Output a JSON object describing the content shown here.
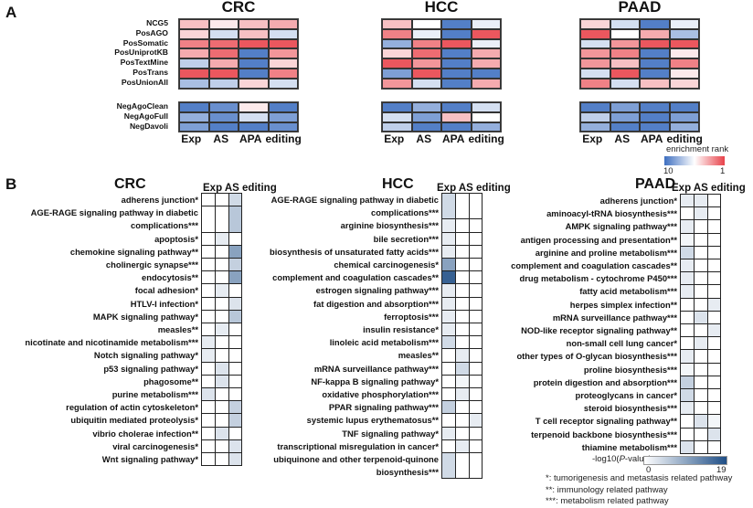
{
  "panel_a": {
    "letter": "A",
    "row_labels": [
      "NCG5",
      "PosAGO",
      "PosSomatic",
      "PosUniprotKB",
      "PosTextMine",
      "PosTrans",
      "PosUnionAll"
    ],
    "neg_row_labels": [
      "NegAgoClean",
      "NegAgoFull",
      "NegDavoli"
    ],
    "columns": [
      "Exp",
      "AS",
      "APA",
      "editing"
    ],
    "legend": {
      "title": "enrichment rank",
      "min_label": "10",
      "max_label": "1"
    }
  },
  "panel_b": {
    "letter": "B",
    "columns_label": "Exp AS editing",
    "legend": {
      "title_prefix": "-log10(",
      "title_italic": "P",
      "title_suffix": "-value)",
      "min_label": "0",
      "max_label": "19"
    },
    "footnotes": [
      "*: tumorigenesis and metastasis related pathway",
      "**: immunology related pathway",
      "***: metabolism related pathway"
    ]
  },
  "chart_data": [
    {
      "type": "heatmap",
      "title": "CRC",
      "panel": "A",
      "x": [
        "Exp",
        "AS",
        "APA",
        "editing"
      ],
      "y": [
        "NCG5",
        "PosAGO",
        "PosSomatic",
        "PosUniprotKB",
        "PosTextMine",
        "PosTrans",
        "PosUnionAll",
        "NegAgoClean",
        "NegAgoFull",
        "NegDavoli"
      ],
      "value_label": "enrichment rank",
      "range": [
        10,
        1
      ],
      "values": [
        [
          4,
          5,
          4,
          3.5
        ],
        [
          4.5,
          6.5,
          4,
          6.5
        ],
        [
          2.5,
          2,
          1.5,
          1.5
        ],
        [
          3.5,
          2,
          9.5,
          3
        ],
        [
          7,
          3.5,
          9.5,
          4.5
        ],
        [
          1.5,
          1.5,
          9.5,
          2.5
        ],
        [
          7.5,
          7,
          4.5,
          6.5
        ],
        [
          9.5,
          9,
          5,
          9.5
        ],
        [
          8,
          9,
          6.5,
          8.5
        ],
        [
          8.5,
          9.5,
          9.5,
          9
        ]
      ]
    },
    {
      "type": "heatmap",
      "title": "HCC",
      "panel": "A",
      "x": [
        "Exp",
        "AS",
        "APA",
        "editing"
      ],
      "y": [
        "NCG5",
        "PosAGO",
        "PosSomatic",
        "PosUniprotKB",
        "PosTextMine",
        "PosTrans",
        "PosUnionAll",
        "NegAgoClean",
        "NegAgoFull",
        "NegDavoli"
      ],
      "value_label": "enrichment rank",
      "range": [
        10,
        1
      ],
      "values": [
        [
          4,
          5.5,
          9.5,
          6
        ],
        [
          2.5,
          6,
          9.5,
          1.5
        ],
        [
          8,
          2.5,
          1.5,
          6
        ],
        [
          4.5,
          2,
          9.5,
          3.5
        ],
        [
          1.5,
          3,
          9.5,
          3.5
        ],
        [
          8.5,
          1.5,
          9.5,
          9.5
        ],
        [
          3,
          6.5,
          9.5,
          3.5
        ],
        [
          9.5,
          8,
          9.5,
          6.5
        ],
        [
          6.5,
          8.5,
          4,
          5.5
        ],
        [
          7,
          9.5,
          9.5,
          8
        ]
      ]
    },
    {
      "type": "heatmap",
      "title": "PAAD",
      "panel": "A",
      "x": [
        "Exp",
        "AS",
        "APA",
        "editing"
      ],
      "y": [
        "NCG5",
        "PosAGO",
        "PosSomatic",
        "PosUniprotKB",
        "PosTextMine",
        "PosTrans",
        "PosUnionAll",
        "NegAgoClean",
        "NegAgoFull",
        "NegDavoli"
      ],
      "value_label": "enrichment rank",
      "range": [
        10,
        1
      ],
      "values": [
        [
          4.5,
          6.5,
          9.5,
          6
        ],
        [
          1.5,
          5.5,
          3.5,
          7.5
        ],
        [
          6.5,
          3,
          1.5,
          1.5
        ],
        [
          3,
          2.5,
          9.5,
          5
        ],
        [
          3,
          4,
          9.5,
          2.5
        ],
        [
          6.5,
          1.5,
          9.5,
          5
        ],
        [
          2.5,
          6.5,
          4,
          4.5
        ],
        [
          9.5,
          8.5,
          9.5,
          9.5
        ],
        [
          7,
          8.5,
          9.5,
          8.5
        ],
        [
          8,
          9.5,
          9.5,
          8
        ]
      ]
    },
    {
      "type": "heatmap",
      "title": "CRC",
      "panel": "B",
      "x": [
        "Exp",
        "AS",
        "editing"
      ],
      "value_label": "-log10(P-value)",
      "range": [
        0,
        19
      ],
      "y": [
        {
          "label": "adherens junction*",
          "values": [
            0,
            0,
            4
          ]
        },
        {
          "label": "AGE-RAGE signaling pathway in diabetic complications***",
          "lines": [
            "AGE-RAGE signaling pathway in diabetic",
            "complications***"
          ],
          "values": [
            0,
            0,
            6
          ]
        },
        {
          "label": "apoptosis*",
          "values": [
            0,
            2,
            0
          ]
        },
        {
          "label": "chemokine signaling pathway**",
          "values": [
            0,
            0,
            10
          ]
        },
        {
          "label": "cholinergic synapse***",
          "values": [
            0,
            0,
            5
          ]
        },
        {
          "label": "endocytosis**",
          "values": [
            0,
            0,
            10
          ]
        },
        {
          "label": "focal adhesion*",
          "values": [
            0,
            2,
            0
          ]
        },
        {
          "label": "HTLV-I infection*",
          "values": [
            0,
            0,
            3
          ]
        },
        {
          "label": "MAPK signaling pathway*",
          "values": [
            0,
            0,
            6
          ]
        },
        {
          "label": "measles**",
          "values": [
            0,
            2,
            0
          ]
        },
        {
          "label": "nicotinate and nicotinamide metabolism***",
          "values": [
            2,
            0,
            0
          ]
        },
        {
          "label": "Notch signaling pathway*",
          "values": [
            2,
            0,
            0
          ]
        },
        {
          "label": "p53 signaling pathway*",
          "values": [
            0,
            3,
            0
          ]
        },
        {
          "label": "phagosome**",
          "values": [
            0,
            3,
            0
          ]
        },
        {
          "label": "purine metabolism***",
          "values": [
            3,
            0,
            0
          ]
        },
        {
          "label": "regulation of actin cytoskeleton*",
          "values": [
            0,
            0,
            5
          ]
        },
        {
          "label": "ubiquitin mediated proteolysis*",
          "values": [
            0,
            0,
            5
          ]
        },
        {
          "label": "vibrio cholerae infection**",
          "values": [
            0,
            3,
            0
          ]
        },
        {
          "label": "viral carcinogenesis*",
          "values": [
            0,
            0,
            3
          ]
        },
        {
          "label": "Wnt signaling pathway*",
          "values": [
            0,
            0,
            3
          ]
        }
      ]
    },
    {
      "type": "heatmap",
      "title": "HCC",
      "panel": "B",
      "x": [
        "Exp",
        "AS",
        "editing"
      ],
      "value_label": "-log10(P-value)",
      "range": [
        0,
        19
      ],
      "y": [
        {
          "label": "AGE-RAGE signaling pathway in diabetic complications***",
          "lines": [
            "AGE-RAGE signaling pathway in diabetic",
            "complications***"
          ],
          "values": [
            4,
            0,
            0
          ]
        },
        {
          "label": "arginine biosynthesis***",
          "values": [
            2,
            0,
            0
          ]
        },
        {
          "label": "bile secretion***",
          "values": [
            2,
            0,
            0
          ]
        },
        {
          "label": "biosynthesis of unsaturated fatty acids***",
          "values": [
            2,
            0,
            0
          ]
        },
        {
          "label": "chemical carcinogenesis*",
          "values": [
            10,
            0,
            0
          ]
        },
        {
          "label": "complement and coagulation cascades**",
          "values": [
            17,
            0,
            0
          ]
        },
        {
          "label": "estrogen signaling pathway***",
          "values": [
            2,
            0,
            0
          ]
        },
        {
          "label": "fat digestion and absorption***",
          "values": [
            2,
            0,
            0
          ]
        },
        {
          "label": "ferroptosis***",
          "values": [
            2,
            0,
            0
          ]
        },
        {
          "label": "insulin resistance*",
          "values": [
            2,
            0,
            0
          ]
        },
        {
          "label": "linoleic acid metabolism***",
          "values": [
            4,
            0,
            0
          ]
        },
        {
          "label": "measles**",
          "values": [
            0,
            2,
            0
          ]
        },
        {
          "label": "mRNA surveillance pathway***",
          "values": [
            0,
            4,
            0
          ]
        },
        {
          "label": "NF-kappa B signaling pathway*",
          "values": [
            0,
            1,
            0
          ]
        },
        {
          "label": "oxidative phosphorylation***",
          "values": [
            0,
            2,
            0
          ]
        },
        {
          "label": "PPAR signaling pathway***",
          "values": [
            5,
            0,
            0
          ]
        },
        {
          "label": "systemic lupus erythematosus**",
          "values": [
            0,
            0,
            2
          ]
        },
        {
          "label": "TNF signaling pathway*",
          "values": [
            2,
            0,
            0
          ]
        },
        {
          "label": "transcriptional misregulation in cancer*",
          "values": [
            0,
            2,
            0
          ]
        },
        {
          "label": "ubiquinone and other terpenoid-quinone biosynthesis***",
          "lines": [
            "ubiquinone and other terpenoid-quinone",
            "biosynthesis***"
          ],
          "values": [
            4,
            0,
            0
          ]
        }
      ]
    },
    {
      "type": "heatmap",
      "title": "PAAD",
      "panel": "B",
      "x": [
        "Exp",
        "AS",
        "editing"
      ],
      "value_label": "-log10(P-value)",
      "range": [
        0,
        19
      ],
      "y": [
        {
          "label": "adherens junction*",
          "values": [
            2,
            2,
            0
          ]
        },
        {
          "label": "aminoacyl-tRNA biosynthesis***",
          "values": [
            0,
            2,
            0
          ]
        },
        {
          "label": "AMPK signaling pathway***",
          "values": [
            2,
            0,
            0
          ]
        },
        {
          "label": "antigen processing and presentation**",
          "values": [
            1,
            0,
            0
          ]
        },
        {
          "label": "arginine and proline metabolism***",
          "values": [
            4,
            0,
            0
          ]
        },
        {
          "label": "complement and coagulation cascades**",
          "values": [
            2,
            0,
            0
          ]
        },
        {
          "label": "drug metabolism - cytochrome P450***",
          "values": [
            2,
            0,
            0
          ]
        },
        {
          "label": "fatty acid metabolism***",
          "values": [
            2,
            0,
            0
          ]
        },
        {
          "label": "herpes simplex infection**",
          "values": [
            0,
            0,
            2
          ]
        },
        {
          "label": "mRNA surveillance pathway***",
          "values": [
            0,
            3,
            0
          ]
        },
        {
          "label": "NOD-like receptor signaling pathway**",
          "values": [
            0,
            0,
            2
          ]
        },
        {
          "label": "non-small cell lung cancer*",
          "values": [
            0,
            2,
            0
          ]
        },
        {
          "label": "other types of O-glycan biosynthesis***",
          "values": [
            2,
            0,
            0
          ]
        },
        {
          "label": "proline biosynthesis***",
          "values": [
            1,
            0,
            0
          ]
        },
        {
          "label": "protein digestion and absorption***",
          "values": [
            5,
            0,
            0
          ]
        },
        {
          "label": "proteoglycans in cancer*",
          "values": [
            4,
            0,
            0
          ]
        },
        {
          "label": "steroid biosynthesis***",
          "values": [
            2,
            0,
            0
          ]
        },
        {
          "label": "T cell receptor signaling pathway**",
          "values": [
            0,
            3,
            1
          ]
        },
        {
          "label": "terpenoid backbone biosynthesis***",
          "values": [
            0,
            0,
            3
          ]
        },
        {
          "label": "thiamine metabolism***",
          "values": [
            3,
            0,
            0
          ]
        }
      ]
    }
  ]
}
